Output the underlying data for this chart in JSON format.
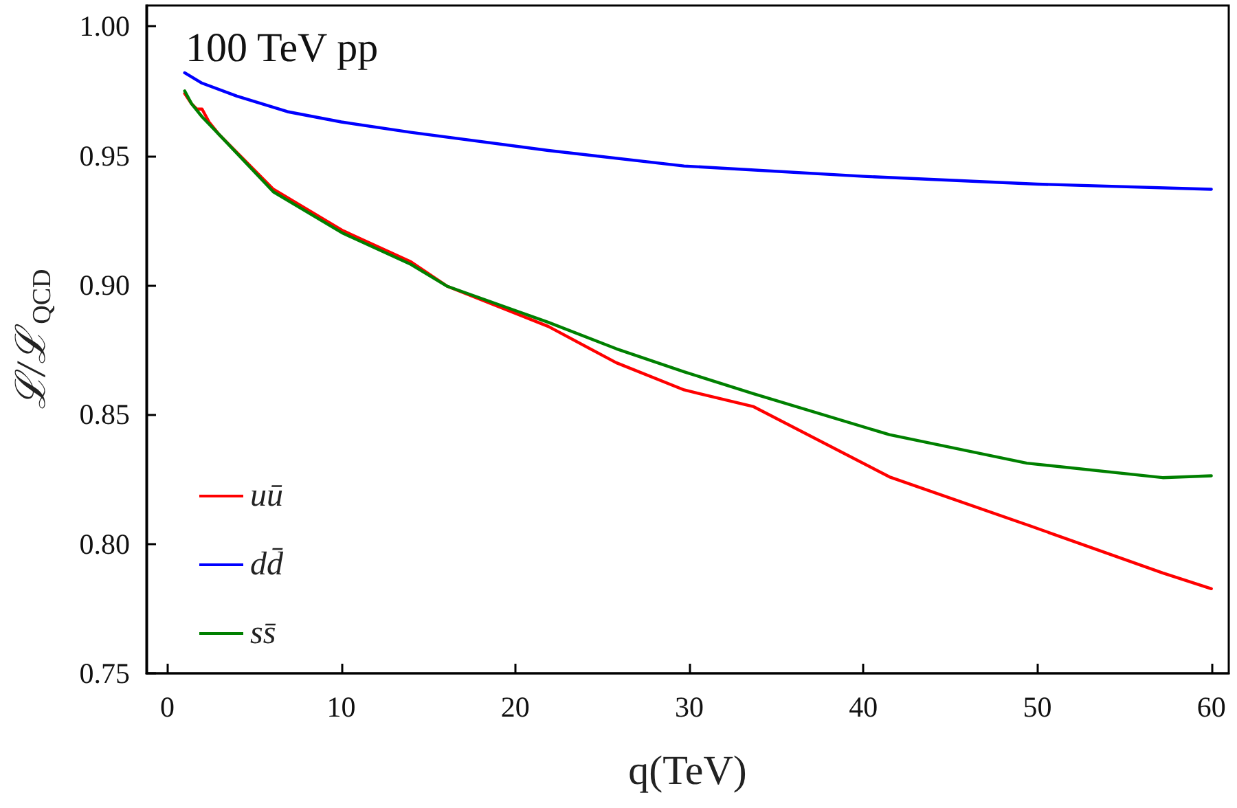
{
  "chart_data": {
    "type": "line",
    "xlabel": "q(TeV)",
    "ylabel": "ℒ/ℒ$_{QCD}$",
    "annotations": [
      "100 TeV pp"
    ],
    "xlim": [
      -1.2,
      61
    ],
    "xticks": [
      0,
      10,
      20,
      30,
      40,
      50,
      60
    ],
    "ylim": [
      0.75,
      1.008
    ],
    "yticks": [
      0.75,
      {
        "value": 0.8,
        "label": "0.80"
      },
      0.85,
      {
        "value": 0.9,
        "label": "0.90"
      },
      0.95,
      {
        "value": 1.0,
        "label": "1.00"
      }
    ],
    "legend": "bottom left",
    "line_style": "solid",
    "series": [
      {
        "name": "uū",
        "color": "#ff0000",
        "x": [
          1,
          1.4,
          1.7,
          2,
          2.4,
          3,
          6.1,
          10.1,
          14,
          16.1,
          21.9,
          25.8,
          29.7,
          33.7,
          41.5,
          49.4,
          57.2,
          60
        ],
        "values": [
          0.974,
          0.97,
          0.968,
          0.968,
          0.963,
          0.958,
          0.937,
          0.921,
          0.909,
          0.8995,
          0.884,
          0.87,
          0.8595,
          0.853,
          0.8259,
          0.8074,
          0.7888,
          0.7827
        ]
      },
      {
        "name": "dd̄",
        "color": "#0000ff",
        "x": [
          1,
          2,
          4,
          6.9,
          10,
          14,
          21.9,
          29.7,
          40,
          50,
          60
        ],
        "values": [
          0.982,
          0.978,
          0.973,
          0.967,
          0.963,
          0.959,
          0.952,
          0.946,
          0.942,
          0.939,
          0.937
        ]
      },
      {
        "name": "ss̄",
        "color": "#008000",
        "x": [
          1,
          1.4,
          2,
          3,
          6.1,
          10.1,
          14,
          16.1,
          21.9,
          25.8,
          29.7,
          33.7,
          41.5,
          49.4,
          57.2,
          60
        ],
        "values": [
          0.975,
          0.97,
          0.965,
          0.958,
          0.936,
          0.92,
          0.908,
          0.8995,
          0.8856,
          0.8754,
          0.8665,
          0.858,
          0.8422,
          0.8312,
          0.8256,
          0.8263
        ]
      }
    ]
  }
}
